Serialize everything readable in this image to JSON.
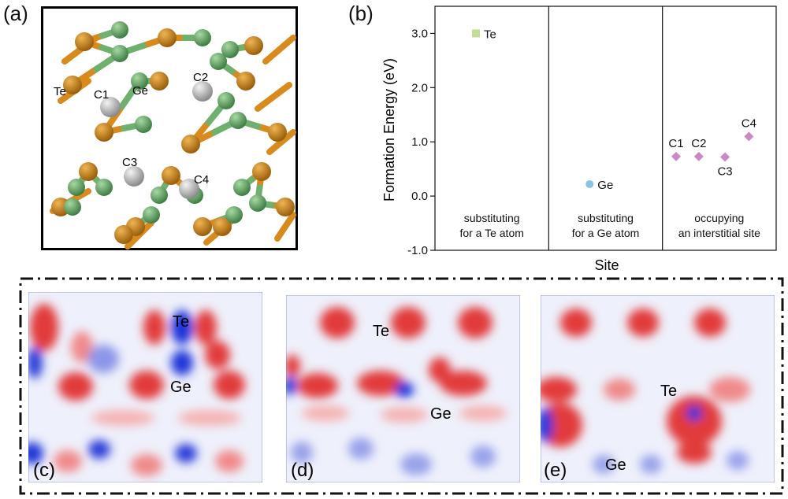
{
  "panels": {
    "a": {
      "label": "(a)",
      "atom_labels": [
        "Te",
        "Ge",
        "C1",
        "C2",
        "C3",
        "C4"
      ],
      "colors": {
        "te": "#c8861b",
        "ge": "#6fb06f",
        "c": "#c4c4c4"
      }
    },
    "b": {
      "label": "(b)",
      "chart_data": {
        "type": "scatter",
        "xlabel": "Site",
        "ylabel": "Formation Energy (eV)",
        "ylim": [
          -1.0,
          3.5
        ],
        "yticks": [
          "-1.0",
          "0.0",
          "1.0",
          "2.0",
          "3.0"
        ],
        "grid": false,
        "regions": [
          {
            "line1": "substituting",
            "line2": "for a Te atom"
          },
          {
            "line1": "substituting",
            "line2": "for a Ge atom"
          },
          {
            "line1": "occupying",
            "line2": "an interstitial site"
          }
        ],
        "series": [
          {
            "points": [
              {
                "label": "Te",
                "region": 0,
                "y": 3.0
              }
            ],
            "marker": "square",
            "color": "#c2dd95"
          },
          {
            "points": [
              {
                "label": "Ge",
                "region": 1,
                "y": 0.22
              }
            ],
            "marker": "circle",
            "color": "#86c3e6"
          },
          {
            "points": [
              {
                "label": "C1",
                "region": 2,
                "y": 0.73
              },
              {
                "label": "C2",
                "region": 2,
                "y": 0.73
              },
              {
                "label": "C3",
                "region": 2,
                "y": 0.72
              },
              {
                "label": "C4",
                "region": 2,
                "y": 1.1
              }
            ],
            "marker": "diamond",
            "color": "#c98ac3"
          }
        ]
      }
    },
    "c": {
      "label": "(c)",
      "atoms": [
        "Te",
        "Ge"
      ]
    },
    "d": {
      "label": "(d)",
      "atoms": [
        "Te",
        "Ge"
      ]
    },
    "e": {
      "label": "(e)",
      "atoms": [
        "Te",
        "Ge"
      ]
    },
    "colors": {
      "positive": "#e02020",
      "negative": "#1f36d8",
      "neutral": "#ffffff"
    }
  }
}
